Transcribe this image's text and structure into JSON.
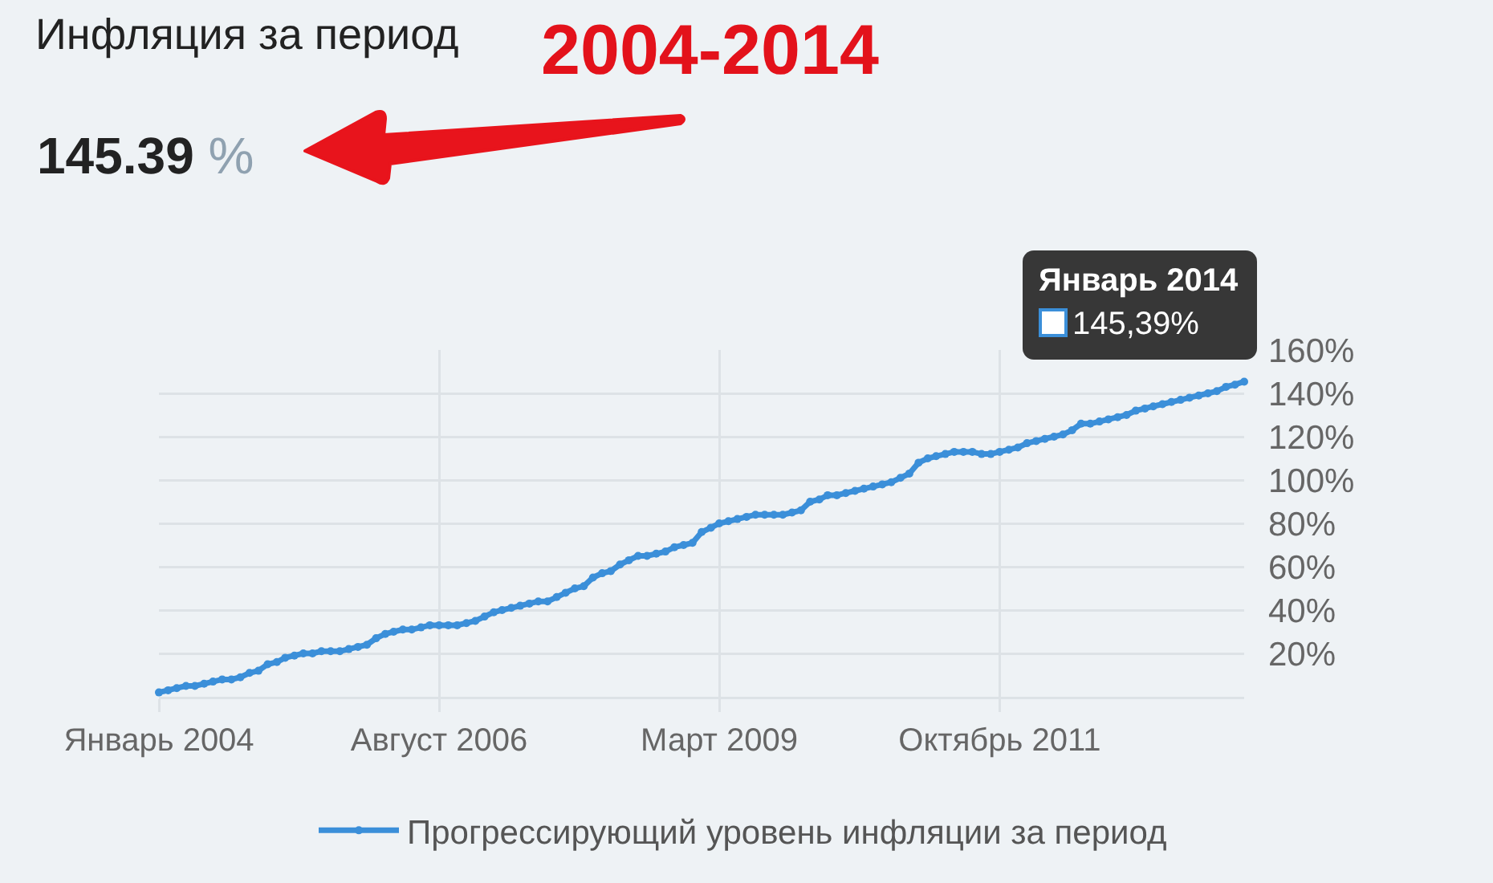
{
  "chart_data": {
    "type": "line",
    "title": "Инфляция за период",
    "subtitle": "2004-2014",
    "annotations": [
      "145.39 %",
      {
        "text": "Январь 2014\n145,39%",
        "x": "2014-01",
        "y": 145.39
      }
    ],
    "x": [
      "2004-01",
      "2004-02",
      "2004-03",
      "2004-04",
      "2004-05",
      "2004-06",
      "2004-07",
      "2004-08",
      "2004-09",
      "2004-10",
      "2004-11",
      "2004-12",
      "2005-01",
      "2005-02",
      "2005-03",
      "2005-04",
      "2005-05",
      "2005-06",
      "2005-07",
      "2005-08",
      "2005-09",
      "2005-10",
      "2005-11",
      "2005-12",
      "2006-01",
      "2006-02",
      "2006-03",
      "2006-04",
      "2006-05",
      "2006-06",
      "2006-07",
      "2006-08",
      "2006-09",
      "2006-10",
      "2006-11",
      "2006-12",
      "2007-01",
      "2007-02",
      "2007-03",
      "2007-04",
      "2007-05",
      "2007-06",
      "2007-07",
      "2007-08",
      "2007-09",
      "2007-10",
      "2007-11",
      "2007-12",
      "2008-01",
      "2008-02",
      "2008-03",
      "2008-04",
      "2008-05",
      "2008-06",
      "2008-07",
      "2008-08",
      "2008-09",
      "2008-10",
      "2008-11",
      "2008-12",
      "2009-01",
      "2009-02",
      "2009-03",
      "2009-04",
      "2009-05",
      "2009-06",
      "2009-07",
      "2009-08",
      "2009-09",
      "2009-10",
      "2009-11",
      "2009-12",
      "2010-01",
      "2010-02",
      "2010-03",
      "2010-04",
      "2010-05",
      "2010-06",
      "2010-07",
      "2010-08",
      "2010-09",
      "2010-10",
      "2010-11",
      "2010-12",
      "2011-01",
      "2011-02",
      "2011-03",
      "2011-04",
      "2011-05",
      "2011-06",
      "2011-07",
      "2011-08",
      "2011-09",
      "2011-10",
      "2011-11",
      "2011-12",
      "2012-01",
      "2012-02",
      "2012-03",
      "2012-04",
      "2012-05",
      "2012-06",
      "2012-07",
      "2012-08",
      "2012-09",
      "2012-10",
      "2012-11",
      "2012-12",
      "2013-01",
      "2013-02",
      "2013-03",
      "2013-04",
      "2013-05",
      "2013-06",
      "2013-07",
      "2013-08",
      "2013-09",
      "2013-10",
      "2013-11",
      "2013-12",
      "2014-01"
    ],
    "series": [
      {
        "name": "Прогрессирующий уровень инфляции за период",
        "color": "#3b8fd9",
        "values": [
          2,
          3,
          4,
          5,
          5,
          6,
          7,
          8,
          8,
          9,
          11,
          12,
          15,
          16,
          18,
          19,
          20,
          20,
          21,
          21,
          21,
          22,
          23,
          24,
          27,
          29,
          30,
          31,
          31,
          32,
          33,
          33,
          33,
          33,
          34,
          35,
          37,
          39,
          40,
          41,
          42,
          43,
          44,
          44,
          46,
          48,
          50,
          51,
          55,
          57,
          58,
          61,
          63,
          65,
          65,
          66,
          67,
          69,
          70,
          71,
          76,
          78,
          80,
          81,
          82,
          83,
          84,
          84,
          84,
          84,
          85,
          86,
          90,
          91,
          93,
          93,
          94,
          95,
          96,
          97,
          98,
          99,
          101,
          103,
          108,
          110,
          111,
          112,
          113,
          113,
          113,
          112,
          112,
          113,
          114,
          115,
          117,
          118,
          119,
          120,
          121,
          123,
          126,
          126,
          127,
          128,
          129,
          130,
          132,
          133,
          134,
          135,
          136,
          137,
          138,
          139,
          140,
          141,
          143,
          144,
          145.39
        ]
      }
    ],
    "xlim": [
      "2004-01",
      "2014-01"
    ],
    "xticks": [
      {
        "value": "2004-01",
        "label": "Январь 2004"
      },
      {
        "value": "2006-08",
        "label": "Август 2006"
      },
      {
        "value": "2009-03",
        "label": "Март 2009"
      },
      {
        "value": "2011-10",
        "label": "Октябрь 2011"
      }
    ],
    "ylim": [
      0,
      160
    ],
    "yticks": [
      {
        "value": 0,
        "label": null
      },
      {
        "value": 20,
        "label": "20%"
      },
      {
        "value": 40,
        "label": "40%"
      },
      {
        "value": 60,
        "label": "60%"
      },
      {
        "value": 80,
        "label": "80%"
      },
      {
        "value": 100,
        "label": "100%"
      },
      {
        "value": 120,
        "label": "120%"
      },
      {
        "value": 140,
        "label": "140%"
      },
      {
        "value": 160,
        "label": "160%"
      }
    ],
    "grid": true,
    "legend": "bottom",
    "marker": "circle",
    "line_style": "solid"
  }
}
